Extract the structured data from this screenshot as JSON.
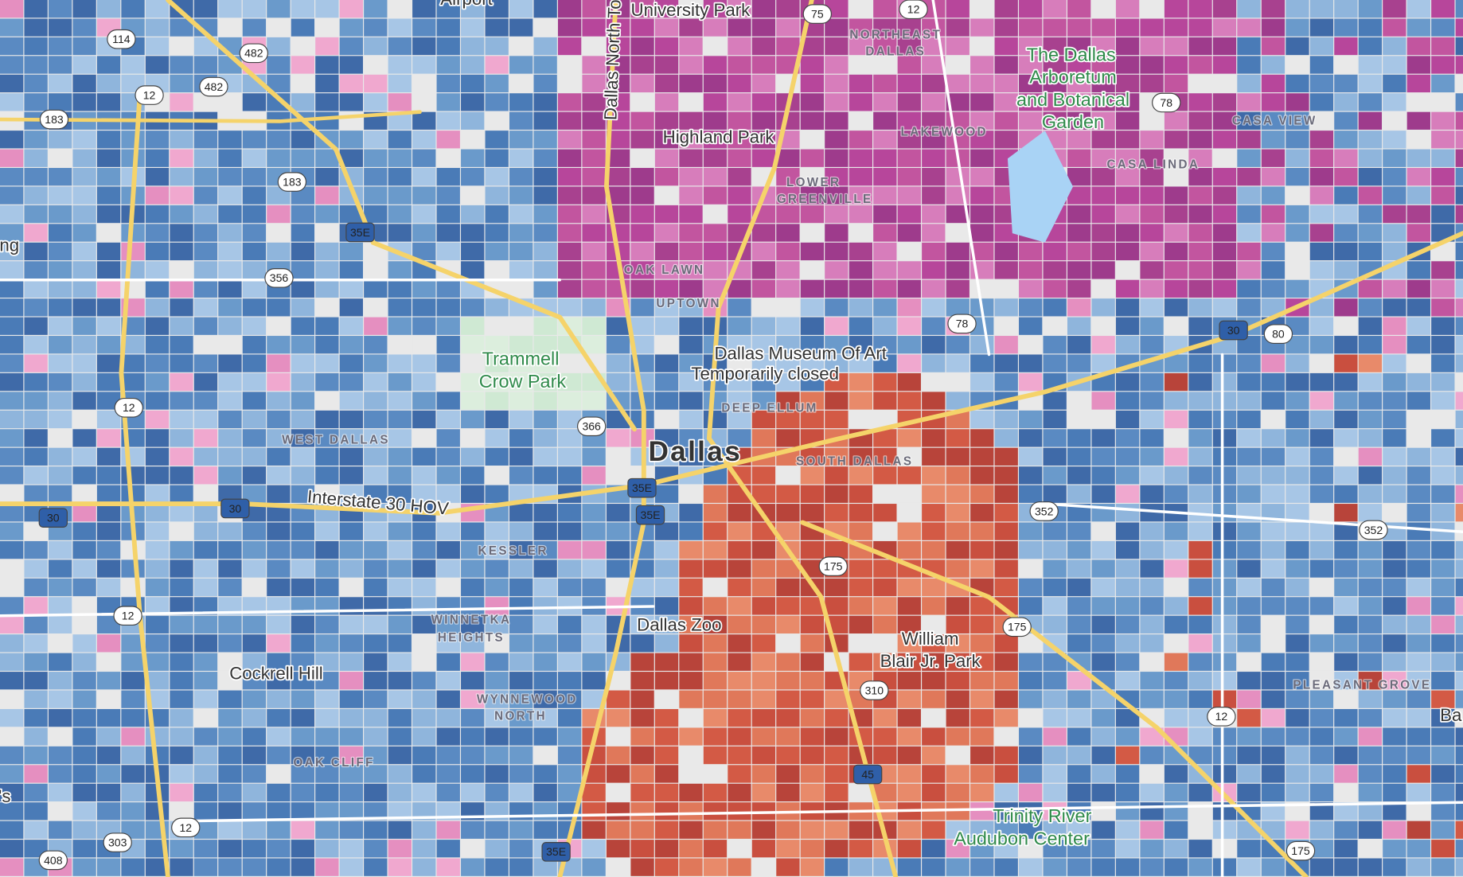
{
  "places": [
    "Dallas",
    "University Park",
    "Highland Park",
    "The Dallas",
    "Arboretum",
    "and Botanical",
    "Garden",
    "Trammell",
    "Crow Park",
    "Dallas Museum Of Art",
    "Temporarily closed",
    "Dallas Zoo",
    "William",
    "Blair Jr. Park",
    "Cockrell Hill",
    "Trinity River",
    "Audubon Center",
    "Interstate 30 HOV",
    "Dallas North Toll",
    "Airport",
    "ng",
    "Ba",
    "'s"
  ],
  "neighborhoods": [
    "NORTHEAST",
    "DALLAS",
    "LAKEWOOD",
    "CASA VIEW",
    "CASA LINDA",
    "LOWER",
    "GREENVILLE",
    "OAK LAWN",
    "UPTOWN",
    "DEEP ELLUM",
    "WEST DALLAS",
    "SOUTH DALLAS",
    "KESSLER",
    "WINNETKA",
    "HEIGHTS",
    "WYNNEWOOD",
    "NORTH",
    "OAK CLIFF",
    "PLEASANT GROVE"
  ],
  "road_shields": [
    "114",
    "482",
    "12",
    "482",
    "183",
    "183",
    "35E",
    "356",
    "12",
    "366",
    "30",
    "30",
    "35E",
    "35E",
    "12",
    "175",
    "175",
    "352",
    "352",
    "310",
    "45",
    "12",
    "303",
    "408",
    "35E",
    "175",
    "78",
    "78",
    "30",
    "80",
    "75",
    "12",
    "12"
  ]
}
